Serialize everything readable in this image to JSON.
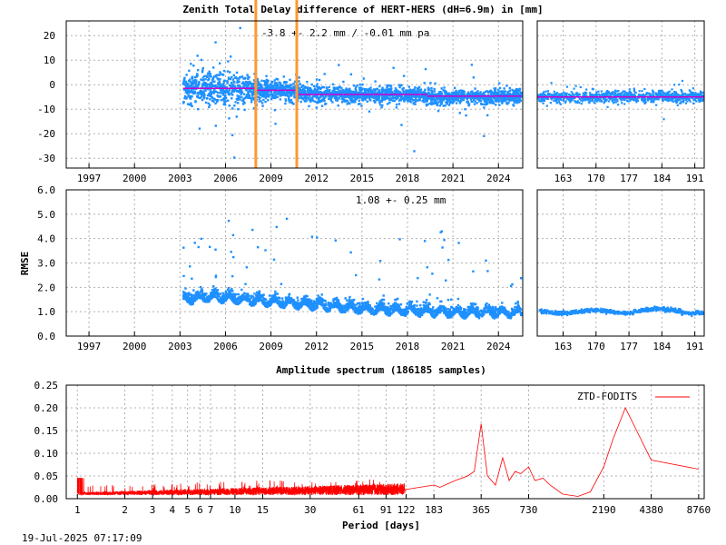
{
  "chart_data": [
    {
      "type": "scatter",
      "title": "Zenith Total Delay difference of HERT-HERS (dH=6.9m) in [mm]",
      "annotation": "-3.8 +-   2.2 mm / -0.01 mm pa",
      "ylabel": "",
      "xlim": [
        1995.5,
        2025.6
      ],
      "ylim": [
        -34,
        26
      ],
      "x_ticks": [
        "1997",
        "2000",
        "2003",
        "2006",
        "2009",
        "2012",
        "2015",
        "2018",
        "2021",
        "2024"
      ],
      "y_ticks": [
        "20",
        "10",
        "0",
        "-10",
        "-20",
        "-30"
      ],
      "grid": true,
      "vertical_markers": [
        2008.0,
        2010.7
      ],
      "series": [
        {
          "x": [
            2003.4,
            2005.0,
            2007.0,
            2008.0,
            2009.0,
            2010.0,
            2012.0,
            2014.0,
            2016.0,
            2018.0,
            2020.0,
            2022.0,
            2024.0,
            2025.3
          ],
          "y": [
            -1.5,
            -1.6,
            -2.0,
            -2.2,
            -2.3,
            -2.5,
            -3.8,
            -4.0,
            -4.1,
            -4.3,
            -4.8,
            -4.9,
            -5.0,
            -5.0
          ],
          "spread": [
            6,
            7,
            7,
            5,
            4,
            4,
            3.5,
            3,
            3,
            3,
            2.8,
            2.8,
            2.8,
            2.8
          ]
        }
      ],
      "mean_segments": [
        {
          "x0": 2003.2,
          "x1": 2008.0,
          "y": -1.5
        },
        {
          "x0": 2008.0,
          "x1": 2010.7,
          "y": -2.3
        },
        {
          "x0": 2010.7,
          "x1": 2019.3,
          "y": -4.0
        },
        {
          "x0": 2019.3,
          "x1": 2025.5,
          "y": -4.7
        }
      ]
    },
    {
      "type": "scatter",
      "title": "",
      "xlim": [
        157.5,
        193
      ],
      "ylim": [
        -34,
        26
      ],
      "x_ticks": [
        "163",
        "170",
        "177",
        "184",
        "191"
      ],
      "grid": true,
      "series": [
        {
          "y": -5.0,
          "spread": 2.5
        }
      ],
      "mean": -5.0
    },
    {
      "type": "scatter",
      "title": "",
      "annotation": "1.08 +-  0.25 mm",
      "ylabel": "RMSE",
      "xlim": [
        1995.5,
        2025.6
      ],
      "ylim": [
        0.0,
        6.0
      ],
      "x_ticks": [
        "1997",
        "2000",
        "2003",
        "2006",
        "2009",
        "2012",
        "2015",
        "2018",
        "2021",
        "2024"
      ],
      "y_ticks": [
        "6.0",
        "5.0",
        "4.0",
        "3.0",
        "2.0",
        "1.0",
        "0.0"
      ],
      "grid": true,
      "series": [
        {
          "x": [
            2003.4,
            2005.0,
            2007.0,
            2009.0,
            2011.0,
            2013.0,
            2015.0,
            2017.0,
            2019.0,
            2021.0,
            2023.0,
            2025.3
          ],
          "y": [
            1.5,
            1.6,
            1.5,
            1.4,
            1.3,
            1.2,
            1.1,
            1.05,
            1.0,
            0.95,
            0.95,
            0.95
          ]
        }
      ]
    },
    {
      "type": "scatter",
      "title": "",
      "xlim": [
        157.5,
        193
      ],
      "ylim": [
        0.0,
        6.0
      ],
      "x_ticks": [
        "163",
        "170",
        "177",
        "184",
        "191"
      ],
      "grid": true,
      "series": [
        {
          "y": 1.0
        }
      ]
    },
    {
      "type": "line",
      "title": "Amplitude spectrum (186185 samples)",
      "xlabel": "Period [days]",
      "ylim": [
        0.0,
        0.25
      ],
      "x_ticks": [
        "1",
        "2",
        "3",
        "4",
        "5",
        "6",
        "7",
        "10",
        "15",
        "30",
        "61",
        "91",
        "122",
        "183",
        "365",
        "730",
        "2190",
        "4380",
        "8760"
      ],
      "y_ticks": [
        "0.25",
        "0.20",
        "0.15",
        "0.10",
        "0.05",
        "0.00"
      ],
      "x_scale": "log",
      "grid": true,
      "legend": "top-right",
      "series": [
        {
          "name": "ZTD-FODITS",
          "color": "#ff0000",
          "x": [
            120,
            183,
            200,
            250,
            300,
            330,
            365,
            400,
            450,
            500,
            550,
            600,
            650,
            730,
            800,
            900,
            1000,
            1200,
            1500,
            1800,
            2190,
            2500,
            3000,
            4380,
            8760
          ],
          "y": [
            0.02,
            0.03,
            0.025,
            0.04,
            0.05,
            0.06,
            0.165,
            0.05,
            0.03,
            0.09,
            0.04,
            0.06,
            0.055,
            0.07,
            0.04,
            0.045,
            0.03,
            0.01,
            0.005,
            0.015,
            0.07,
            0.13,
            0.2,
            0.085,
            0.065
          ]
        }
      ]
    }
  ],
  "footer": {
    "timestamp": "19-Jul-2025 07:17:09"
  },
  "colors": {
    "points": "#1e90ff",
    "mean": "#cc00cc",
    "marker": "#ff9933",
    "spectrum": "#ff0000"
  }
}
